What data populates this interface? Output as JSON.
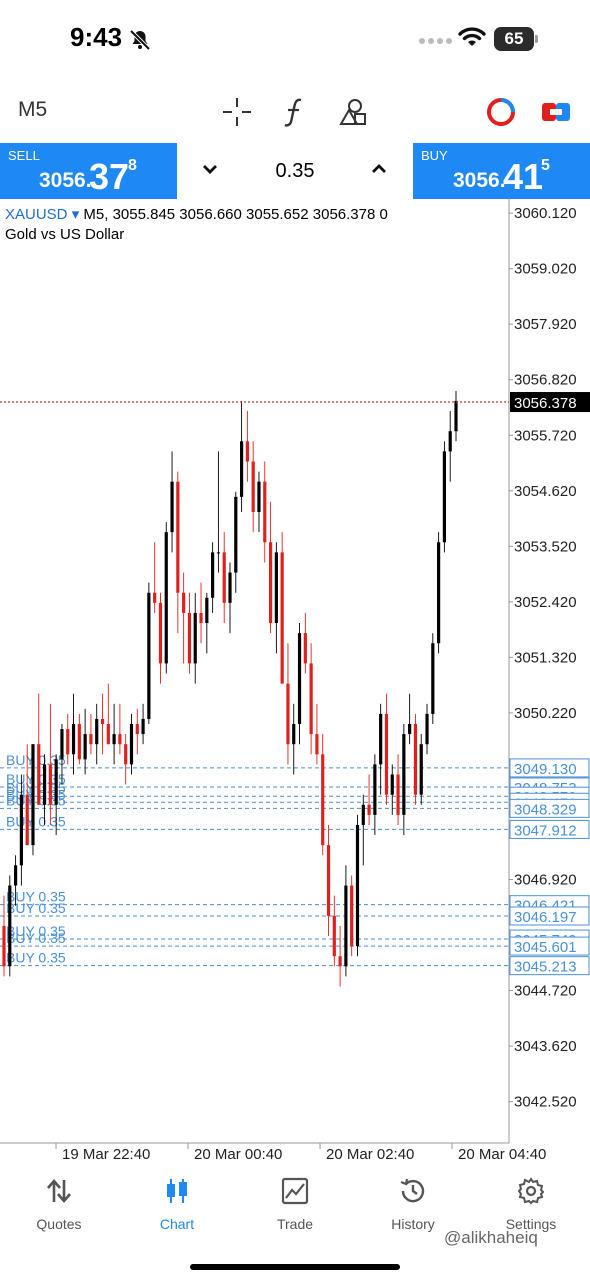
{
  "status_bar": {
    "time": "9:43",
    "battery": "65"
  },
  "toolbar": {
    "timeframe": "M5"
  },
  "trade": {
    "sell_label": "SELL",
    "sell_price_main": "3056.",
    "sell_price_big": "37",
    "sell_price_sup": "8",
    "lot": "0.35",
    "buy_label": "BUY",
    "buy_price_main": "3056.",
    "buy_price_big": "41",
    "buy_price_sup": "5"
  },
  "chart_info": {
    "symbol": "XAUUSD",
    "dropdown_marker": "▾",
    "ohlc_line": "M5, 3055.845 3056.660 3055.652 3056.378 0",
    "description": "Gold vs US Dollar"
  },
  "colors": {
    "accent": "#1e88f5",
    "bull": "#000000",
    "bear": "#e0201c",
    "order_line": "#4a90d9"
  },
  "chart_data": {
    "type": "candlestick",
    "ylim": [
      3041.7,
      3060.4
    ],
    "y_ticks": [
      "3060.120",
      "3059.020",
      "3057.920",
      "3056.820",
      "3055.720",
      "3054.620",
      "3053.520",
      "3052.420",
      "3051.320",
      "3050.220",
      "3046.920",
      "3044.720",
      "3043.620",
      "3042.520"
    ],
    "x_ticks": [
      "19 Mar 22:40",
      "20 Mar 00:40",
      "20 Mar 02:40",
      "20 Mar 04:40"
    ],
    "current_price": {
      "value": 3056.378,
      "label": "3056.378"
    },
    "order_lines": [
      {
        "value": 3049.13,
        "label": "3049.130",
        "text": "BUY 0.35"
      },
      {
        "value": 3048.753,
        "label": "3048.753",
        "text": "BUY 0.35"
      },
      {
        "value": 3048.57,
        "label": "3048.570",
        "text": "BUY 0.35"
      },
      {
        "value": 3048.45,
        "label": "3048.450",
        "text": "BUY 0.35"
      },
      {
        "value": 3048.329,
        "label": "3048.329",
        "text": "BUY 0.35"
      },
      {
        "value": 3047.912,
        "label": "3047.912",
        "text": "BUY 0.35"
      },
      {
        "value": 3046.421,
        "label": "3046.421",
        "text": "BUY 0.35"
      },
      {
        "value": 3046.197,
        "label": "3046.197",
        "text": "BUY 0.35"
      },
      {
        "value": 3045.74,
        "label": "3045.740",
        "text": "BUY 0.35"
      },
      {
        "value": 3045.601,
        "label": "3045.601",
        "text": "BUY 0.35"
      },
      {
        "value": 3045.213,
        "label": "3045.213",
        "text": "BUY 0.35"
      }
    ],
    "candles": [
      [
        3046.0,
        3046.6,
        3045.0,
        3045.2
      ],
      [
        3045.2,
        3047.0,
        3045.0,
        3046.8
      ],
      [
        3046.8,
        3047.4,
        3046.4,
        3047.2
      ],
      [
        3047.2,
        3049.0,
        3046.8,
        3048.6
      ],
      [
        3048.6,
        3049.6,
        3047.6,
        3047.6
      ],
      [
        3047.6,
        3049.6,
        3047.4,
        3049.6
      ],
      [
        3049.6,
        3050.6,
        3048.4,
        3048.4
      ],
      [
        3048.4,
        3049.4,
        3048.0,
        3049.2
      ],
      [
        3049.2,
        3050.4,
        3048.0,
        3048.4
      ],
      [
        3048.4,
        3049.4,
        3047.8,
        3049.3
      ],
      [
        3049.3,
        3050.0,
        3048.8,
        3049.9
      ],
      [
        3049.9,
        3050.2,
        3049.2,
        3049.4
      ],
      [
        3049.4,
        3050.6,
        3049.0,
        3050.0
      ],
      [
        3050.0,
        3050.2,
        3049.2,
        3049.3
      ],
      [
        3049.3,
        3050.3,
        3049.0,
        3049.8
      ],
      [
        3049.8,
        3050.2,
        3049.4,
        3049.6
      ],
      [
        3049.6,
        3050.4,
        3049.2,
        3050.1
      ],
      [
        3050.1,
        3050.6,
        3049.4,
        3050.0
      ],
      [
        3050.0,
        3050.8,
        3049.6,
        3049.6
      ],
      [
        3049.6,
        3050.4,
        3049.2,
        3049.8
      ],
      [
        3049.8,
        3050.4,
        3049.4,
        3049.6
      ],
      [
        3049.6,
        3049.8,
        3048.8,
        3049.2
      ],
      [
        3049.2,
        3050.2,
        3049.0,
        3050.0
      ],
      [
        3050.0,
        3050.3,
        3049.4,
        3049.8
      ],
      [
        3049.8,
        3050.4,
        3049.6,
        3050.1
      ],
      [
        3050.1,
        3052.8,
        3050.0,
        3052.6
      ],
      [
        3052.6,
        3053.6,
        3052.2,
        3052.4
      ],
      [
        3052.4,
        3052.6,
        3050.8,
        3051.2
      ],
      [
        3051.2,
        3054.0,
        3051.0,
        3053.8
      ],
      [
        3053.8,
        3055.4,
        3053.4,
        3054.8
      ],
      [
        3054.8,
        3055.0,
        3051.8,
        3052.6
      ],
      [
        3052.6,
        3053.0,
        3051.2,
        3052.2
      ],
      [
        3052.2,
        3052.6,
        3051.0,
        3051.2
      ],
      [
        3051.2,
        3052.6,
        3050.8,
        3052.2
      ],
      [
        3052.2,
        3052.8,
        3051.6,
        3052.0
      ],
      [
        3052.0,
        3052.6,
        3051.4,
        3052.5
      ],
      [
        3052.5,
        3053.6,
        3052.2,
        3053.4
      ],
      [
        3053.4,
        3055.4,
        3053.0,
        3053.4
      ],
      [
        3053.4,
        3053.8,
        3052.0,
        3052.4
      ],
      [
        3052.4,
        3053.2,
        3051.8,
        3053.0
      ],
      [
        3053.0,
        3054.6,
        3052.6,
        3054.5
      ],
      [
        3054.5,
        3056.4,
        3054.2,
        3055.6
      ],
      [
        3055.6,
        3056.2,
        3054.8,
        3055.2
      ],
      [
        3055.2,
        3055.6,
        3053.8,
        3054.2
      ],
      [
        3054.2,
        3055.0,
        3053.8,
        3054.8
      ],
      [
        3054.8,
        3055.2,
        3053.2,
        3053.6
      ],
      [
        3053.6,
        3054.4,
        3051.8,
        3052.0
      ],
      [
        3052.0,
        3053.6,
        3051.4,
        3053.4
      ],
      [
        3053.4,
        3053.8,
        3050.8,
        3050.8
      ],
      [
        3050.8,
        3051.6,
        3049.2,
        3049.6
      ],
      [
        3049.6,
        3050.4,
        3049.0,
        3050.0
      ],
      [
        3050.0,
        3052.0,
        3049.6,
        3051.8
      ],
      [
        3051.8,
        3052.2,
        3051.0,
        3051.2
      ],
      [
        3051.2,
        3051.6,
        3049.4,
        3049.8
      ],
      [
        3049.8,
        3050.4,
        3049.2,
        3049.4
      ],
      [
        3049.4,
        3049.8,
        3047.4,
        3047.6
      ],
      [
        3047.6,
        3048.0,
        3045.8,
        3046.2
      ],
      [
        3046.2,
        3046.6,
        3045.2,
        3045.4
      ],
      [
        3045.4,
        3046.0,
        3044.8,
        3045.2
      ],
      [
        3045.2,
        3047.2,
        3045.0,
        3046.8
      ],
      [
        3046.8,
        3047.0,
        3045.4,
        3045.6
      ],
      [
        3045.6,
        3048.2,
        3045.4,
        3048.0
      ],
      [
        3048.0,
        3048.6,
        3047.2,
        3048.4
      ],
      [
        3048.4,
        3049.0,
        3048.0,
        3048.2
      ],
      [
        3048.2,
        3049.4,
        3047.8,
        3049.2
      ],
      [
        3049.2,
        3050.4,
        3048.6,
        3050.2
      ],
      [
        3050.2,
        3050.6,
        3048.4,
        3048.6
      ],
      [
        3048.6,
        3049.2,
        3048.2,
        3049.0
      ],
      [
        3049.0,
        3049.4,
        3048.0,
        3048.2
      ],
      [
        3048.2,
        3050.0,
        3047.8,
        3049.8
      ],
      [
        3049.8,
        3050.6,
        3049.6,
        3050.0
      ],
      [
        3050.0,
        3050.2,
        3048.4,
        3048.6
      ],
      [
        3048.6,
        3049.8,
        3048.4,
        3049.6
      ],
      [
        3049.6,
        3050.4,
        3049.4,
        3050.2
      ],
      [
        3050.2,
        3051.8,
        3050.0,
        3051.6
      ],
      [
        3051.6,
        3053.8,
        3051.4,
        3053.6
      ],
      [
        3053.6,
        3055.6,
        3053.4,
        3055.4
      ],
      [
        3055.4,
        3056.2,
        3054.8,
        3055.8
      ],
      [
        3055.8,
        3056.6,
        3055.6,
        3056.4
      ]
    ]
  },
  "bottom_nav": {
    "items": [
      {
        "label": "Quotes",
        "icon": "quotes-icon"
      },
      {
        "label": "Chart",
        "icon": "candlestick-icon"
      },
      {
        "label": "Trade",
        "icon": "trade-icon"
      },
      {
        "label": "History",
        "icon": "history-icon"
      },
      {
        "label": "Settings",
        "icon": "gear-icon"
      }
    ],
    "active": "Chart",
    "watermark": "@alikhaheiq"
  }
}
